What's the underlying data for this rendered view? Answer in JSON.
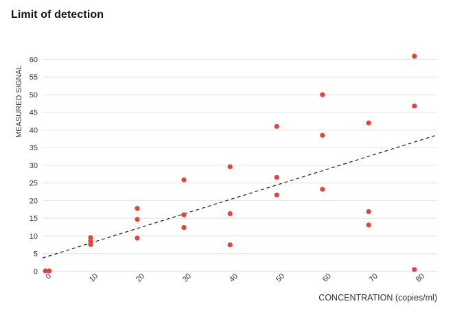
{
  "header": {
    "title": "Limit of detection"
  },
  "colors": {
    "point": "#e8413d",
    "trend_line": "#1a1a1a",
    "gridline": "#e4e4e4",
    "tick_label": "#333333",
    "axis_title": "#333333",
    "title": "#111111",
    "background": "#ffffff"
  },
  "chart_data": {
    "type": "scatter",
    "title": "Limit of detection",
    "xlabel": "CONCENTRATION (copies/ml)",
    "ylabel": "MEASURED SIGNAL",
    "xlim": [
      -0.6,
      84
    ],
    "ylim": [
      -0.5,
      63.2
    ],
    "x_ticks": [
      0,
      10,
      20,
      30,
      40,
      50,
      60,
      70,
      80
    ],
    "y_ticks": [
      0,
      5,
      10,
      15,
      20,
      25,
      30,
      35,
      40,
      45,
      50,
      55,
      60
    ],
    "grid": "horizontal",
    "legend": "none",
    "points": [
      {
        "x": 0,
        "y": 0.1
      },
      {
        "x": 0.8,
        "y": 0.1
      },
      {
        "x": 9.7,
        "y": 9.5
      },
      {
        "x": 9.7,
        "y": 8.5
      },
      {
        "x": 9.7,
        "y": 7.6
      },
      {
        "x": 19.7,
        "y": 17.8
      },
      {
        "x": 19.7,
        "y": 14.7
      },
      {
        "x": 19.7,
        "y": 9.4
      },
      {
        "x": 29.7,
        "y": 25.9
      },
      {
        "x": 29.7,
        "y": 16.0
      },
      {
        "x": 29.7,
        "y": 12.4
      },
      {
        "x": 39.6,
        "y": 29.6
      },
      {
        "x": 39.6,
        "y": 16.3
      },
      {
        "x": 39.6,
        "y": 7.5
      },
      {
        "x": 49.6,
        "y": 41.0
      },
      {
        "x": 49.6,
        "y": 26.6
      },
      {
        "x": 49.6,
        "y": 21.6
      },
      {
        "x": 59.4,
        "y": 50.0
      },
      {
        "x": 59.4,
        "y": 38.5
      },
      {
        "x": 59.4,
        "y": 23.2
      },
      {
        "x": 69.3,
        "y": 42.0
      },
      {
        "x": 69.3,
        "y": 16.9
      },
      {
        "x": 69.3,
        "y": 13.1
      },
      {
        "x": 79.1,
        "y": 60.9
      },
      {
        "x": 79.1,
        "y": 46.8
      },
      {
        "x": 79.1,
        "y": 0.5
      }
    ],
    "trend_line": {
      "style": "dashed",
      "x1": -0.6,
      "y1": 3.75,
      "x2": 84,
      "y2": 38.6
    }
  }
}
